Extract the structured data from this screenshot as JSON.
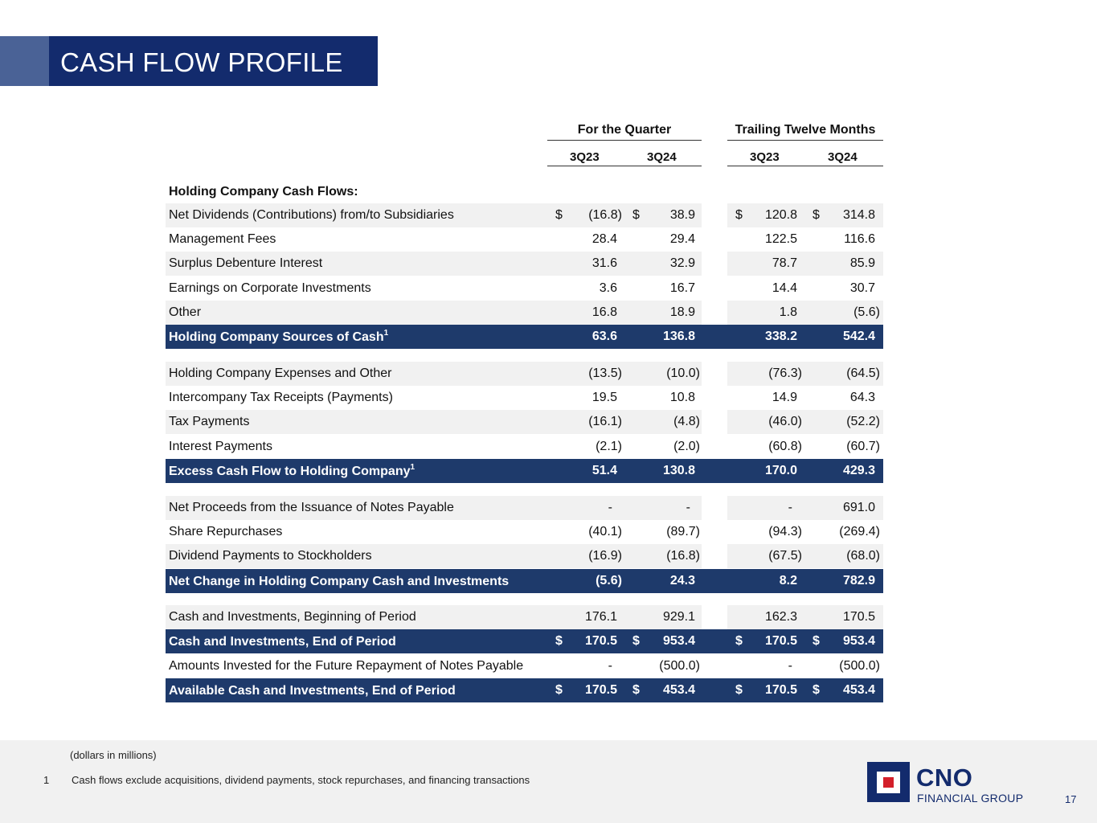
{
  "header": {
    "title": "CASH FLOW PROFILE"
  },
  "table": {
    "group_quarter": "For the Quarter",
    "group_ttm": "Trailing Twelve Months",
    "columns": [
      "3Q23",
      "3Q24",
      "3Q23",
      "3Q24"
    ],
    "section_head": "Holding Company Cash Flows:",
    "rows": [
      {
        "label": "Net Dividends (Contributions) from/to Subsidiaries",
        "sup": "",
        "cur": "$",
        "v": [
          "(16.8)",
          "38.9",
          "120.8",
          "314.8"
        ]
      },
      {
        "label": "Management Fees",
        "sup": "",
        "cur": "",
        "v": [
          "28.4",
          "29.4",
          "122.5",
          "116.6"
        ]
      },
      {
        "label": "Surplus Debenture Interest",
        "sup": "",
        "cur": "",
        "v": [
          "31.6",
          "32.9",
          "78.7",
          "85.9"
        ]
      },
      {
        "label": "Earnings on Corporate Investments",
        "sup": "",
        "cur": "",
        "v": [
          "3.6",
          "16.7",
          "14.4",
          "30.7"
        ]
      },
      {
        "label": "Other",
        "sup": "",
        "cur": "",
        "v": [
          "16.8",
          "18.9",
          "1.8",
          "(5.6)"
        ]
      },
      {
        "label": "Holding Company Sources of Cash",
        "sup": "1",
        "cur": "",
        "v": [
          "63.6",
          "136.8",
          "338.2",
          "542.4"
        ]
      },
      {
        "label": "Holding Company Expenses and Other",
        "sup": "",
        "cur": "",
        "v": [
          "(13.5)",
          "(10.0)",
          "(76.3)",
          "(64.5)"
        ]
      },
      {
        "label": "Intercompany Tax Receipts (Payments)",
        "sup": "",
        "cur": "",
        "v": [
          "19.5",
          "10.8",
          "14.9",
          "64.3"
        ]
      },
      {
        "label": "Tax Payments",
        "sup": "",
        "cur": "",
        "v": [
          "(16.1)",
          "(4.8)",
          "(46.0)",
          "(52.2)"
        ]
      },
      {
        "label": "Interest Payments",
        "sup": "",
        "cur": "",
        "v": [
          "(2.1)",
          "(2.0)",
          "(60.8)",
          "(60.7)"
        ]
      },
      {
        "label": "Excess Cash Flow to Holding Company",
        "sup": "1",
        "cur": "",
        "v": [
          "51.4",
          "130.8",
          "170.0",
          "429.3"
        ]
      },
      {
        "label": "Net Proceeds from the Issuance of Notes Payable",
        "sup": "",
        "cur": "",
        "v": [
          "-",
          "-",
          "-",
          "691.0"
        ]
      },
      {
        "label": "Share Repurchases",
        "sup": "",
        "cur": "",
        "v": [
          "(40.1)",
          "(89.7)",
          "(94.3)",
          "(269.4)"
        ]
      },
      {
        "label": "Dividend Payments to Stockholders",
        "sup": "",
        "cur": "",
        "v": [
          "(16.9)",
          "(16.8)",
          "(67.5)",
          "(68.0)"
        ]
      },
      {
        "label": "Net Change in Holding Company Cash and Investments",
        "sup": "",
        "cur": "",
        "v": [
          "(5.6)",
          "24.3",
          "8.2",
          "782.9"
        ]
      },
      {
        "label": "Cash and Investments, Beginning of Period",
        "sup": "",
        "cur": "",
        "v": [
          "176.1",
          "929.1",
          "162.3",
          "170.5"
        ]
      },
      {
        "label": "Cash and Investments, End of Period",
        "sup": "",
        "cur": "$",
        "v": [
          "170.5",
          "953.4",
          "170.5",
          "953.4"
        ]
      },
      {
        "label": "Amounts Invested for the Future Repayment of Notes Payable",
        "sup": "",
        "cur": "",
        "v": [
          "-",
          "(500.0)",
          "-",
          "(500.0)"
        ]
      },
      {
        "label": "Available Cash and Investments, End of Period",
        "sup": "",
        "cur": "$",
        "v": [
          "170.5",
          "453.4",
          "170.5",
          "453.4"
        ]
      }
    ]
  },
  "footer": {
    "units": "(dollars in millions)",
    "footnote_number": "1",
    "footnote_text": "Cash flows exclude acquisitions, dividend payments, stock repurchases, and financing transactions",
    "logo_name": "CNO",
    "logo_subtitle": "FINANCIAL GROUP",
    "page_number": "17"
  }
}
